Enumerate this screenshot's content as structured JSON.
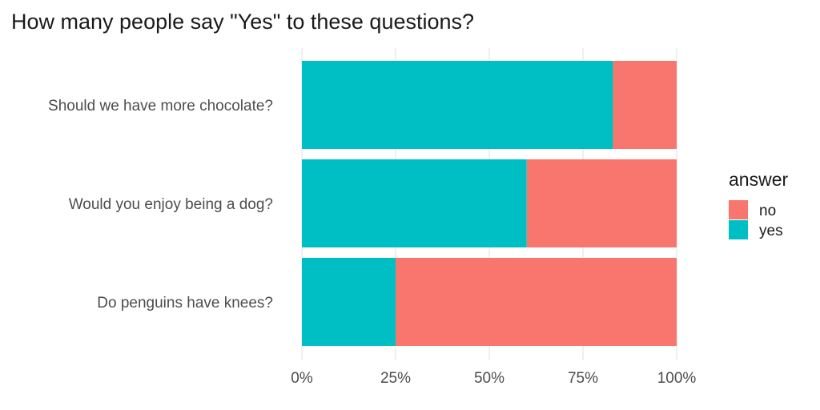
{
  "chart_data": {
    "type": "bar",
    "orientation": "horizontal",
    "stacked": true,
    "title": "How many people say \"Yes\" to these questions?",
    "xlabel": "",
    "ylabel": "",
    "categories": [
      "Should we have more chocolate?",
      "Would you enjoy being a dog?",
      "Do penguins have knees?"
    ],
    "series": [
      {
        "name": "yes",
        "color": "#00BFC4",
        "values": [
          0.83,
          0.6,
          0.25
        ]
      },
      {
        "name": "no",
        "color": "#F8766D",
        "values": [
          0.17,
          0.4,
          0.75
        ]
      }
    ],
    "xlim": [
      0,
      1
    ],
    "xticks": [
      0,
      0.25,
      0.5,
      0.75,
      1
    ],
    "xtick_labels": [
      "0%",
      "25%",
      "50%",
      "75%",
      "100%"
    ],
    "grid": true,
    "legend": {
      "title": "answer",
      "placement": "right",
      "entries": [
        {
          "label": "no",
          "color": "#F8766D"
        },
        {
          "label": "yes",
          "color": "#00BFC4"
        }
      ]
    }
  }
}
